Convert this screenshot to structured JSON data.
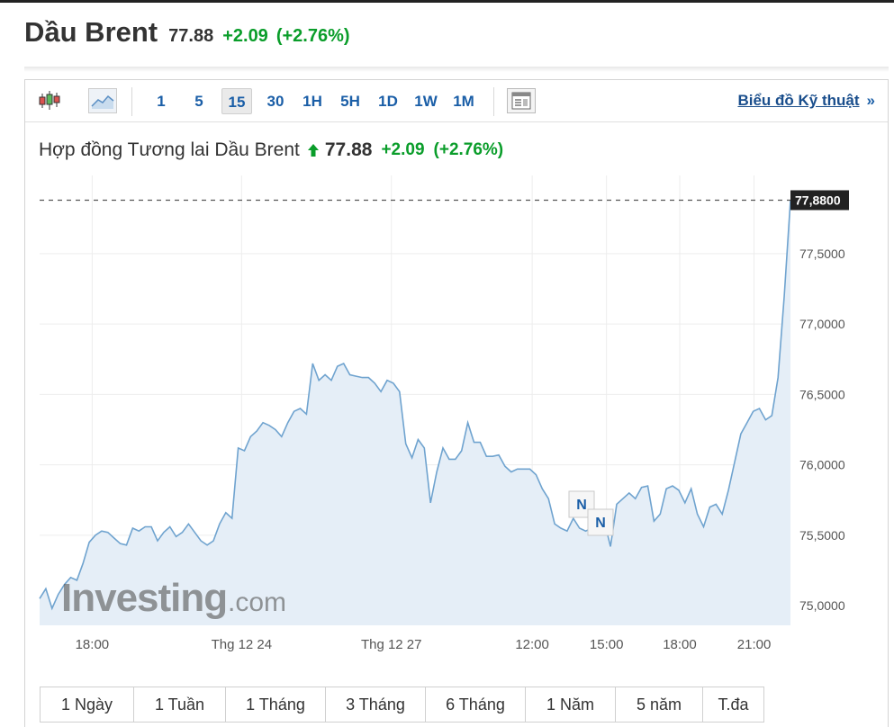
{
  "instrument": {
    "name": "Dầu Brent",
    "price": "77.88",
    "change": "+2.09",
    "change_pct": "(+2.76%)"
  },
  "toolbar": {
    "timeframes": [
      "1",
      "5",
      "15",
      "30",
      "1H",
      "5H",
      "1D",
      "1W",
      "1M"
    ],
    "selected_timeframe": "15",
    "technical_link": "Biểu đồ Kỹ thuật",
    "technical_chevron": "»"
  },
  "chart_header": {
    "title": "Hợp đồng Tương lai Dầu Brent",
    "price": "77.88",
    "change": "+2.09",
    "change_pct": "(+2.76%)"
  },
  "watermark": {
    "brand": "Investing",
    "suffix": ".com"
  },
  "news_markers": [
    "N",
    "N"
  ],
  "range_buttons": [
    "1 Ngày",
    "1 Tuần",
    "1 Tháng",
    "3 Tháng",
    "6 Tháng",
    "1 Năm",
    "5 năm",
    "T.đa"
  ],
  "colors": {
    "line": "#6fa3cf",
    "area_fill": "#e5eef7",
    "up": "#0a9d2a",
    "link": "#1a5ea7",
    "last_price_bg": "#222222"
  },
  "chart_data": {
    "type": "area",
    "title": "Hợp đồng Tương lai Dầu Brent",
    "x_tick_labels": [
      "18:00",
      "Thg 12 24",
      "Thg 12 27",
      "12:00",
      "15:00",
      "18:00",
      "21:00"
    ],
    "y_tick_labels": [
      "75,0000",
      "75,5000",
      "76,0000",
      "76,5000",
      "77,0000",
      "77,5000"
    ],
    "y_ticks": [
      75.0,
      75.5,
      76.0,
      76.5,
      77.0,
      77.5
    ],
    "ylim": [
      74.86,
      78.03
    ],
    "last_value": 77.88,
    "last_value_label": "77,8800",
    "grid": true,
    "values": [
      75.05,
      75.12,
      74.98,
      75.08,
      75.15,
      75.2,
      75.18,
      75.3,
      75.45,
      75.5,
      75.53,
      75.52,
      75.48,
      75.44,
      75.43,
      75.55,
      75.53,
      75.56,
      75.56,
      75.46,
      75.52,
      75.56,
      75.49,
      75.52,
      75.58,
      75.52,
      75.46,
      75.43,
      75.46,
      75.58,
      75.66,
      75.62,
      76.12,
      76.1,
      76.2,
      76.24,
      76.3,
      76.28,
      76.25,
      76.2,
      76.3,
      76.38,
      76.4,
      76.36,
      76.72,
      76.6,
      76.64,
      76.6,
      76.7,
      76.72,
      76.64,
      76.63,
      76.62,
      76.62,
      76.58,
      76.52,
      76.6,
      76.58,
      76.52,
      76.15,
      76.05,
      76.18,
      76.12,
      75.73,
      75.95,
      76.12,
      76.04,
      76.04,
      76.1,
      76.3,
      76.16,
      76.16,
      76.06,
      76.06,
      76.07,
      75.99,
      75.95,
      75.97,
      75.97,
      75.97,
      75.93,
      75.83,
      75.76,
      75.58,
      75.55,
      75.53,
      75.62,
      75.55,
      75.53,
      75.55,
      75.58,
      75.6,
      75.42,
      75.72,
      75.76,
      75.8,
      75.76,
      75.84,
      75.85,
      75.6,
      75.65,
      75.83,
      75.85,
      75.82,
      75.73,
      75.83,
      75.65,
      75.56,
      75.7,
      75.72,
      75.65,
      75.82,
      76.02,
      76.22,
      76.3,
      76.38,
      76.4,
      76.32,
      76.35,
      76.62,
      77.2,
      77.88
    ]
  }
}
